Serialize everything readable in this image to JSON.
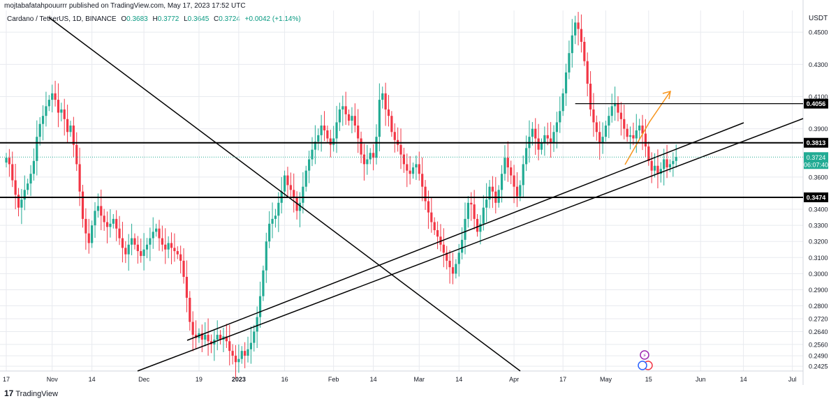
{
  "publish_line": "mojtabafatahpouurrr published on TradingView.com, May 17, 2023 17:52 UTC",
  "legend": {
    "symbol": "Cardano / TetherUS, 1D, BINANCE",
    "o_label": "O",
    "o_value": "0.3683",
    "h_label": "H",
    "h_value": "0.3772",
    "l_label": "L",
    "l_value": "0.3645",
    "c_label": "C",
    "c_value": "0.3724",
    "change": "+0.0042 (+1.14%)"
  },
  "unit": "USDT",
  "footer": {
    "logo_mark": "17",
    "brand": "TradingView"
  },
  "colors": {
    "up": "#22ab94",
    "down": "#f23645",
    "orange": "#f7931a",
    "price_tag": "#22ab94",
    "grid": "#e8eaef"
  },
  "chart_data": {
    "type": "candlestick",
    "ylim": [
      0.2395,
      0.4635
    ],
    "y_ticks": [
      "0.4500",
      "0.4300",
      "0.4100",
      "0.3900",
      "0.3600",
      "0.3400",
      "0.3300",
      "0.3200",
      "0.3100",
      "0.3000",
      "0.2900",
      "0.2800",
      "0.2720",
      "0.2640",
      "0.2560",
      "0.2490",
      "0.2425"
    ],
    "x_ticks": [
      {
        "label": "17",
        "i": 0
      },
      {
        "label": "Nov",
        "i": 15
      },
      {
        "label": "14",
        "i": 28
      },
      {
        "label": "Dec",
        "i": 45
      },
      {
        "label": "19",
        "i": 63
      },
      {
        "label": "2023",
        "i": 76
      },
      {
        "label": "16",
        "i": 91
      },
      {
        "label": "Feb",
        "i": 107
      },
      {
        "label": "14",
        "i": 120
      },
      {
        "label": "Mar",
        "i": 135
      },
      {
        "label": "14",
        "i": 148
      },
      {
        "label": "Apr",
        "i": 166
      },
      {
        "label": "17",
        "i": 182
      },
      {
        "label": "May",
        "i": 196
      },
      {
        "label": "15",
        "i": 210
      },
      {
        "label": "Jun",
        "i": 227
      },
      {
        "label": "14",
        "i": 241
      },
      {
        "label": "Jul",
        "i": 257
      }
    ],
    "candles_close": [
      0.372,
      0.368,
      0.358,
      0.349,
      0.341,
      0.346,
      0.352,
      0.356,
      0.362,
      0.37,
      0.385,
      0.393,
      0.398,
      0.404,
      0.408,
      0.412,
      0.408,
      0.4,
      0.402,
      0.396,
      0.388,
      0.392,
      0.38,
      0.368,
      0.351,
      0.334,
      0.325,
      0.319,
      0.33,
      0.339,
      0.342,
      0.336,
      0.332,
      0.329,
      0.331,
      0.334,
      0.328,
      0.322,
      0.316,
      0.312,
      0.318,
      0.322,
      0.318,
      0.314,
      0.311,
      0.315,
      0.318,
      0.322,
      0.326,
      0.328,
      0.322,
      0.318,
      0.315,
      0.319,
      0.316,
      0.314,
      0.312,
      0.308,
      0.298,
      0.285,
      0.27,
      0.262,
      0.26,
      0.263,
      0.259,
      0.262,
      0.258,
      0.256,
      0.259,
      0.262,
      0.259,
      0.261,
      0.258,
      0.252,
      0.249,
      0.245,
      0.247,
      0.252,
      0.249,
      0.253,
      0.257,
      0.264,
      0.273,
      0.286,
      0.302,
      0.32,
      0.331,
      0.334,
      0.336,
      0.344,
      0.351,
      0.361,
      0.355,
      0.352,
      0.347,
      0.339,
      0.344,
      0.354,
      0.364,
      0.371,
      0.377,
      0.382,
      0.386,
      0.392,
      0.389,
      0.384,
      0.38,
      0.384,
      0.394,
      0.402,
      0.404,
      0.399,
      0.395,
      0.398,
      0.392,
      0.384,
      0.374,
      0.368,
      0.371,
      0.375,
      0.372,
      0.385,
      0.408,
      0.412,
      0.402,
      0.398,
      0.388,
      0.383,
      0.38,
      0.374,
      0.368,
      0.364,
      0.362,
      0.366,
      0.368,
      0.362,
      0.354,
      0.345,
      0.338,
      0.332,
      0.327,
      0.323,
      0.318,
      0.313,
      0.308,
      0.304,
      0.3,
      0.306,
      0.313,
      0.321,
      0.334,
      0.344,
      0.343,
      0.334,
      0.326,
      0.331,
      0.341,
      0.346,
      0.354,
      0.351,
      0.344,
      0.352,
      0.362,
      0.372,
      0.366,
      0.361,
      0.354,
      0.348,
      0.355,
      0.368,
      0.378,
      0.385,
      0.39,
      0.384,
      0.377,
      0.381,
      0.386,
      0.384,
      0.381,
      0.388,
      0.394,
      0.401,
      0.412,
      0.425,
      0.437,
      0.448,
      0.456,
      0.452,
      0.444,
      0.432,
      0.418,
      0.402,
      0.394,
      0.388,
      0.381,
      0.385,
      0.392,
      0.398,
      0.404,
      0.406,
      0.4,
      0.396,
      0.39,
      0.385,
      0.386,
      0.384,
      0.389,
      0.392,
      0.387,
      0.379,
      0.37,
      0.364,
      0.367,
      0.362,
      0.365,
      0.371,
      0.366,
      0.368,
      0.37,
      0.3724
    ],
    "horizontal_levels": [
      {
        "price": 0.3813,
        "label": "0.3813",
        "bold": true
      },
      {
        "price": 0.3474,
        "label": "0.3474",
        "bold": true
      },
      {
        "price": 0.4056,
        "label": "0.4056",
        "bold": false,
        "from_i": 186
      }
    ],
    "last_price": {
      "value": "0.3724",
      "countdown": "06:07:40"
    }
  }
}
